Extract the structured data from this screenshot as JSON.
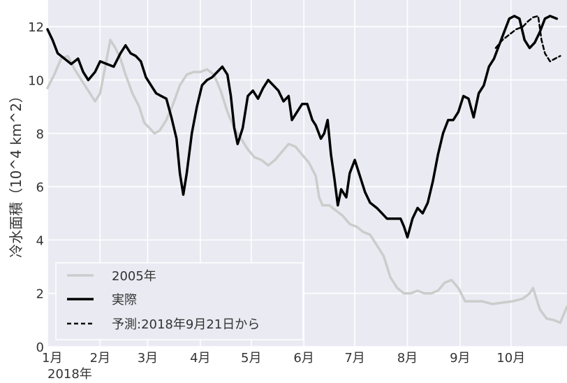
{
  "chart_data": {
    "type": "line",
    "ylabel": "冷水面積（10^4 km^2）",
    "ylim": [
      0,
      13
    ],
    "xlim": [
      0,
      306
    ],
    "yticks": [
      0,
      2,
      4,
      6,
      8,
      10,
      12
    ],
    "xtick_positions": [
      0,
      31,
      59,
      90,
      120,
      151,
      181,
      212,
      243,
      273
    ],
    "xtick_labels": [
      "1月",
      "2月",
      "3月",
      "4月",
      "5月",
      "6月",
      "7月",
      "8月",
      "9月",
      "10月"
    ],
    "year_label": "2018年",
    "grid": true,
    "legend_position": "lower-left",
    "series": [
      {
        "name": "2005年",
        "color": "#cccccc",
        "style": "solid",
        "points": [
          [
            0,
            9.7
          ],
          [
            4,
            10.2
          ],
          [
            8,
            10.8
          ],
          [
            12,
            10.9
          ],
          [
            16,
            10.4
          ],
          [
            20,
            10.0
          ],
          [
            24,
            9.6
          ],
          [
            28,
            9.2
          ],
          [
            31,
            9.5
          ],
          [
            34,
            10.5
          ],
          [
            37,
            11.5
          ],
          [
            40,
            11.2
          ],
          [
            43,
            10.8
          ],
          [
            46,
            10.2
          ],
          [
            50,
            9.5
          ],
          [
            54,
            9.0
          ],
          [
            57,
            8.4
          ],
          [
            60,
            8.2
          ],
          [
            63,
            8.0
          ],
          [
            66,
            8.1
          ],
          [
            70,
            8.5
          ],
          [
            74,
            9.1
          ],
          [
            78,
            9.8
          ],
          [
            82,
            10.2
          ],
          [
            86,
            10.3
          ],
          [
            90,
            10.3
          ],
          [
            94,
            10.4
          ],
          [
            98,
            10.2
          ],
          [
            102,
            9.6
          ],
          [
            106,
            8.8
          ],
          [
            110,
            8.2
          ],
          [
            114,
            7.8
          ],
          [
            118,
            7.4
          ],
          [
            122,
            7.1
          ],
          [
            126,
            7.0
          ],
          [
            130,
            6.8
          ],
          [
            134,
            7.0
          ],
          [
            138,
            7.3
          ],
          [
            142,
            7.6
          ],
          [
            146,
            7.5
          ],
          [
            150,
            7.2
          ],
          [
            154,
            6.9
          ],
          [
            158,
            6.4
          ],
          [
            160,
            5.6
          ],
          [
            162,
            5.3
          ],
          [
            166,
            5.3
          ],
          [
            170,
            5.1
          ],
          [
            174,
            4.9
          ],
          [
            178,
            4.6
          ],
          [
            182,
            4.5
          ],
          [
            186,
            4.3
          ],
          [
            190,
            4.2
          ],
          [
            194,
            3.8
          ],
          [
            198,
            3.4
          ],
          [
            202,
            2.6
          ],
          [
            206,
            2.2
          ],
          [
            210,
            2.0
          ],
          [
            214,
            2.0
          ],
          [
            218,
            2.1
          ],
          [
            222,
            2.0
          ],
          [
            226,
            2.0
          ],
          [
            230,
            2.1
          ],
          [
            234,
            2.4
          ],
          [
            238,
            2.5
          ],
          [
            242,
            2.2
          ],
          [
            246,
            1.7
          ],
          [
            250,
            1.7
          ],
          [
            256,
            1.7
          ],
          [
            262,
            1.6
          ],
          [
            268,
            1.65
          ],
          [
            274,
            1.7
          ],
          [
            280,
            1.8
          ],
          [
            284,
            2.0
          ],
          [
            286,
            2.2
          ],
          [
            290,
            1.4
          ],
          [
            294,
            1.05
          ],
          [
            298,
            1.0
          ],
          [
            302,
            0.9
          ],
          [
            306,
            1.5
          ]
        ]
      },
      {
        "name": "実際",
        "color": "#000000",
        "style": "solid",
        "points": [
          [
            0,
            11.9
          ],
          [
            3,
            11.5
          ],
          [
            6,
            11.0
          ],
          [
            10,
            10.8
          ],
          [
            14,
            10.6
          ],
          [
            18,
            10.8
          ],
          [
            21,
            10.3
          ],
          [
            24,
            10.0
          ],
          [
            28,
            10.3
          ],
          [
            31,
            10.7
          ],
          [
            35,
            10.6
          ],
          [
            39,
            10.5
          ],
          [
            43,
            11.0
          ],
          [
            46,
            11.3
          ],
          [
            49,
            11.0
          ],
          [
            52,
            10.9
          ],
          [
            55,
            10.7
          ],
          [
            58,
            10.1
          ],
          [
            61,
            9.8
          ],
          [
            64,
            9.5
          ],
          [
            67,
            9.4
          ],
          [
            70,
            9.3
          ],
          [
            73,
            8.6
          ],
          [
            76,
            7.8
          ],
          [
            78,
            6.5
          ],
          [
            80,
            5.7
          ],
          [
            82,
            6.5
          ],
          [
            85,
            8.0
          ],
          [
            88,
            9.0
          ],
          [
            91,
            9.8
          ],
          [
            94,
            10.0
          ],
          [
            97,
            10.1
          ],
          [
            100,
            10.3
          ],
          [
            103,
            10.5
          ],
          [
            106,
            10.2
          ],
          [
            108,
            9.4
          ],
          [
            110,
            8.2
          ],
          [
            112,
            7.6
          ],
          [
            115,
            8.2
          ],
          [
            118,
            9.4
          ],
          [
            121,
            9.6
          ],
          [
            124,
            9.3
          ],
          [
            127,
            9.7
          ],
          [
            130,
            10.0
          ],
          [
            133,
            9.8
          ],
          [
            136,
            9.6
          ],
          [
            139,
            9.2
          ],
          [
            142,
            9.4
          ],
          [
            144,
            8.5
          ],
          [
            147,
            8.8
          ],
          [
            150,
            9.1
          ],
          [
            153,
            9.1
          ],
          [
            156,
            8.5
          ],
          [
            158,
            8.3
          ],
          [
            161,
            7.8
          ],
          [
            163,
            8.0
          ],
          [
            165,
            8.5
          ],
          [
            167,
            7.2
          ],
          [
            169,
            6.3
          ],
          [
            171,
            5.3
          ],
          [
            173,
            5.9
          ],
          [
            176,
            5.6
          ],
          [
            178,
            6.5
          ],
          [
            181,
            7.0
          ],
          [
            184,
            6.4
          ],
          [
            187,
            5.8
          ],
          [
            190,
            5.4
          ],
          [
            194,
            5.2
          ],
          [
            197,
            5.0
          ],
          [
            200,
            4.8
          ],
          [
            204,
            4.8
          ],
          [
            208,
            4.8
          ],
          [
            210,
            4.5
          ],
          [
            212,
            4.1
          ],
          [
            215,
            4.8
          ],
          [
            218,
            5.2
          ],
          [
            221,
            5.0
          ],
          [
            224,
            5.4
          ],
          [
            227,
            6.2
          ],
          [
            230,
            7.2
          ],
          [
            233,
            8.0
          ],
          [
            236,
            8.5
          ],
          [
            239,
            8.5
          ],
          [
            242,
            8.8
          ],
          [
            245,
            9.4
          ],
          [
            248,
            9.3
          ],
          [
            251,
            8.6
          ],
          [
            254,
            9.5
          ],
          [
            257,
            9.8
          ],
          [
            260,
            10.5
          ],
          [
            263,
            10.8
          ],
          [
            266,
            11.3
          ],
          [
            269,
            11.8
          ],
          [
            272,
            12.3
          ],
          [
            275,
            12.4
          ],
          [
            278,
            12.3
          ],
          [
            281,
            11.5
          ],
          [
            284,
            11.2
          ],
          [
            287,
            11.4
          ],
          [
            290,
            11.8
          ],
          [
            293,
            12.3
          ],
          [
            296,
            12.4
          ],
          [
            300,
            12.3
          ]
        ]
      },
      {
        "name": "予測:2018年9月21日から",
        "color": "#000000",
        "style": "dashed",
        "points": [
          [
            264,
            11.2
          ],
          [
            268,
            11.5
          ],
          [
            272,
            11.7
          ],
          [
            276,
            11.9
          ],
          [
            280,
            12.0
          ],
          [
            283,
            12.2
          ],
          [
            286,
            12.35
          ],
          [
            289,
            12.4
          ],
          [
            291,
            11.5
          ],
          [
            293,
            11.0
          ],
          [
            296,
            10.7
          ],
          [
            299,
            10.8
          ],
          [
            302,
            10.9
          ]
        ]
      }
    ]
  }
}
